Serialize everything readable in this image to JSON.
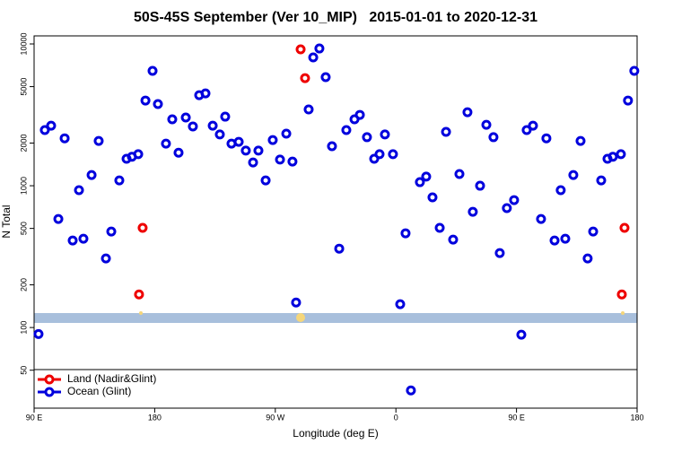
{
  "chart_data": {
    "type": "scatter",
    "title": "50S-45S September (Ver 10_MIP)   2015-01-01 to 2020-12-31",
    "x_label": "Longitude (deg E)",
    "y_label": "N Total",
    "log_y": true,
    "legend_position": "bottom-left",
    "xlim": [
      90,
      540
    ],
    "ylim": [
      27,
      11400
    ],
    "xticks": [
      {
        "value": 90,
        "label": "90 E"
      },
      {
        "value": 180,
        "label": "180"
      },
      {
        "value": 270,
        "label": "90 W"
      },
      {
        "value": 360,
        "label": "0"
      },
      {
        "value": 450,
        "label": "90 E"
      },
      {
        "value": 540,
        "label": "180"
      }
    ],
    "yticks": [
      50,
      100,
      200,
      500,
      1000,
      2000,
      5000,
      10000
    ],
    "series": [
      {
        "name": "Land (Nadir&Glint)",
        "color": "#ee0000",
        "x": [
          168.3,
          171.0,
          288.9,
          292.2,
          528.6,
          530.6
        ],
        "values": [
          171,
          505,
          9160,
          5740,
          171,
          505
        ]
      },
      {
        "name": "Ocean (Glint)",
        "color": "#0000dd",
        "x": [
          93.3,
          98.0,
          102.7,
          108.1,
          112.8,
          118.8,
          123.5,
          126.8,
          132.9,
          138.2,
          143.6,
          147.6,
          153.6,
          159.0,
          163.0,
          167.7,
          173.1,
          178.4,
          182.4,
          188.4,
          193.1,
          197.8,
          203.2,
          208.5,
          213.2,
          217.9,
          223.3,
          228.6,
          232.6,
          237.3,
          242.7,
          248.0,
          253.4,
          257.4,
          262.8,
          268.1,
          273.5,
          278.2,
          282.8,
          285.5,
          294.9,
          298.3,
          302.9,
          307.6,
          312.3,
          317.7,
          323.0,
          329.1,
          333.1,
          338.4,
          343.8,
          347.8,
          351.8,
          357.8,
          363.2,
          367.2,
          371.2,
          377.9,
          382.6,
          387.3,
          392.7,
          397.4,
          402.7,
          407.4,
          413.4,
          417.4,
          422.8,
          427.5,
          432.8,
          437.5,
          442.8,
          448.2,
          453.6,
          457.6,
          462.3,
          468.3,
          472.3,
          478.4,
          483.0,
          486.4,
          492.4,
          497.8,
          503.1,
          507.2,
          513.2,
          517.9,
          521.9,
          527.9,
          533.2,
          537.9
        ],
        "values": [
          90,
          2470,
          2650,
          583,
          2160,
          411,
          930,
          423,
          1190,
          2070,
          307,
          475,
          1090,
          1550,
          1600,
          1670,
          3990,
          6460,
          3770,
          1980,
          2940,
          1710,
          3030,
          2620,
          4350,
          4480,
          2650,
          2300,
          3070,
          1980,
          2040,
          1770,
          1460,
          1770,
          1090,
          2100,
          1530,
          2330,
          1480,
          150,
          3450,
          8040,
          9290,
          5830,
          1900,
          360,
          2470,
          2940,
          3160,
          2200,
          1550,
          1670,
          2300,
          1670,
          146,
          462,
          36,
          1060,
          1160,
          828,
          505,
          2400,
          417,
          1210,
          3300,
          655,
          1000,
          2690,
          2200,
          335,
          695,
          792,
          89,
          2470,
          2650,
          583,
          2160,
          411,
          930,
          423,
          1190,
          2070,
          307,
          475,
          1090,
          1550,
          1600,
          1670,
          3990,
          6460
        ]
      }
    ]
  }
}
